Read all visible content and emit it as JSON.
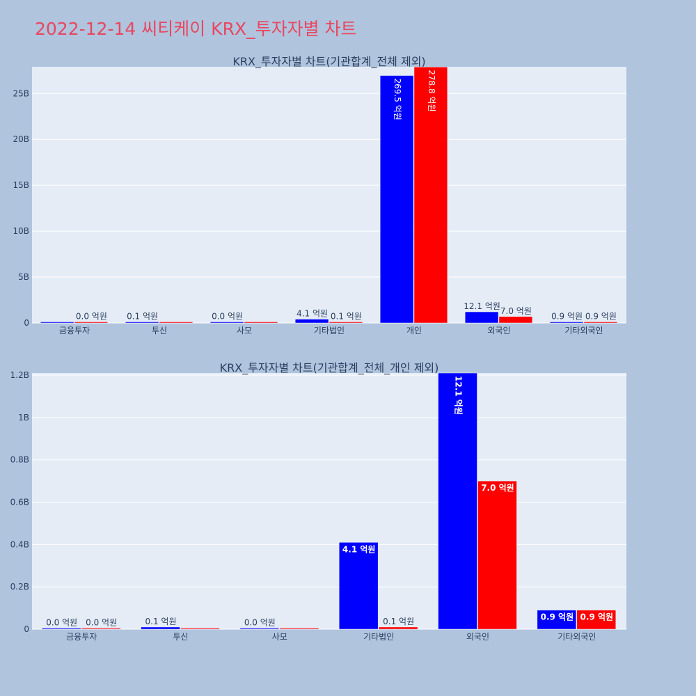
{
  "page_title": "2022-12-14 씨티케이 KRX_투자자별 차트",
  "colors": {
    "series_a": "#0000ff",
    "series_b": "#ff0000"
  },
  "chart_data": [
    {
      "type": "bar",
      "title": "KRX_투자자별 차트(기관합계_전체 제외)",
      "categories": [
        "금융투자",
        "투신",
        "사모",
        "기타법인",
        "개인",
        "외국인",
        "기타외국인"
      ],
      "ylim": [
        0,
        27900000000
      ],
      "yticks": [
        0,
        5000000000,
        10000000000,
        15000000000,
        20000000000,
        25000000000
      ],
      "ytick_labels": [
        "0",
        "5B",
        "10B",
        "15B",
        "20B",
        "25B"
      ],
      "series": [
        {
          "values": [
            2000000,
            10000000,
            3000000,
            410000000,
            26950000000,
            1210000000,
            90000000
          ],
          "labels": [
            "",
            "0.1 억원",
            "0.0 억원",
            "4.1 억원",
            "269.5 억원",
            "12.1 억원",
            "0.9 억원"
          ]
        },
        {
          "values": [
            3000000,
            0,
            0,
            10000000,
            27880000000,
            700000000,
            90000000
          ],
          "labels": [
            "0.0 억원",
            "",
            "",
            "0.1 억원",
            "278.8 억원",
            "7.0 억원",
            "0.9 억원"
          ]
        }
      ]
    },
    {
      "type": "bar",
      "title": "KRX_투자자별 차트(기관합계_전체_개인 제외)",
      "categories": [
        "금융투자",
        "투신",
        "사모",
        "기타법인",
        "외국인",
        "기타외국인"
      ],
      "ylim": [
        0,
        1210000000
      ],
      "yticks": [
        0,
        200000000,
        400000000,
        600000000,
        800000000,
        1000000000,
        1200000000
      ],
      "ytick_labels": [
        "0",
        "0.2B",
        "0.4B",
        "0.6B",
        "0.8B",
        "1B",
        "1.2B"
      ],
      "series": [
        {
          "values": [
            2000000,
            10000000,
            3000000,
            410000000,
            1210000000,
            90000000
          ],
          "labels": [
            "0.0 억원",
            "0.1 억원",
            "0.0 억원",
            "4.1 억원",
            "12.1 억원",
            "0.9 억원"
          ]
        },
        {
          "values": [
            3000000,
            0,
            0,
            10000000,
            700000000,
            90000000
          ],
          "labels": [
            "0.0 억원",
            "",
            "",
            "0.1 억원",
            "7.0 억원",
            "0.9 억원"
          ]
        }
      ]
    }
  ]
}
